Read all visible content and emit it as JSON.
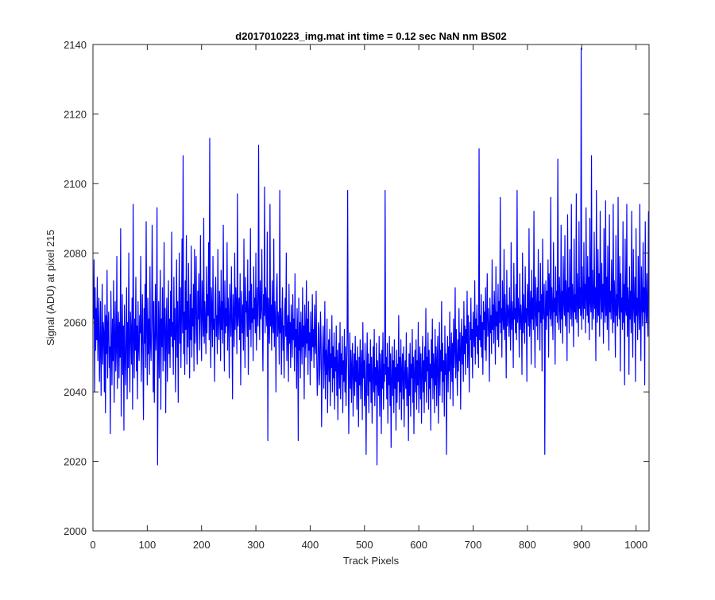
{
  "chart_data": {
    "type": "line",
    "title": "d2017010223_img.mat int time = 0.12 sec  NaN nm BS02",
    "xlabel": "Track Pixels",
    "ylabel": "Signal (ADU) at pixel 215",
    "xlim": [
      0,
      1024
    ],
    "ylim": [
      2000,
      2140
    ],
    "xticks": [
      0,
      100,
      200,
      300,
      400,
      500,
      600,
      700,
      800,
      900,
      1000
    ],
    "yticks": [
      2000,
      2020,
      2040,
      2060,
      2080,
      2100,
      2120,
      2140
    ],
    "xtick_labels": [
      "0",
      "100",
      "200",
      "300",
      "400",
      "500",
      "600",
      "700",
      "800",
      "900",
      "1000"
    ],
    "ytick_labels": [
      "2000",
      "2020",
      "2040",
      "2060",
      "2080",
      "2100",
      "2120",
      "2140"
    ],
    "grid": false,
    "legend": "none",
    "series": [
      {
        "color": "#0000ff",
        "x_start": 1,
        "x_step": 1,
        "values": [
          2061,
          2078,
          2040,
          2070,
          2052,
          2064,
          2055,
          2073,
          2049,
          2058,
          2067,
          2043,
          2052,
          2066,
          2039,
          2054,
          2071,
          2048,
          2060,
          2057,
          2040,
          2065,
          2034,
          2062,
          2051,
          2075,
          2044,
          2059,
          2063,
          2047,
          2053,
          2028,
          2069,
          2056,
          2042,
          2061,
          2049,
          2072,
          2037,
          2055,
          2066,
          2046,
          2052,
          2079,
          2041,
          2057,
          2063,
          2044,
          2060,
          2050,
          2087,
          2033,
          2054,
          2068,
          2045,
          2059,
          2029,
          2065,
          2051,
          2042,
          2056,
          2070,
          2038,
          2060,
          2047,
          2080,
          2053,
          2040,
          2063,
          2058,
          2048,
          2067,
          2035,
          2094,
          2056,
          2044,
          2061,
          2052,
          2073,
          2046,
          2059,
          2038,
          2066,
          2053,
          2049,
          2062,
          2057,
          2079,
          2043,
          2055,
          2068,
          2050,
          2032,
          2064,
          2054,
          2071,
          2047,
          2089,
          2058,
          2042,
          2067,
          2051,
          2061,
          2045,
          2076,
          2054,
          2049,
          2059,
          2088,
          2063,
          2040,
          2066,
          2037,
          2055,
          2071,
          2052,
          2058,
          2093,
          2019,
          2050,
          2066,
          2044,
          2059,
          2075,
          2035,
          2061,
          2053,
          2070,
          2046,
          2057,
          2083,
          2049,
          2064,
          2034,
          2058,
          2067,
          2043,
          2055,
          2072,
          2051,
          2061,
          2047,
          2069,
          2056,
          2086,
          2053,
          2060,
          2045,
          2073,
          2055,
          2064,
          2040,
          2058,
          2078,
          2050,
          2066,
          2037,
          2060,
          2080,
          2054,
          2070,
          2047,
          2062,
          2084,
          2057,
          2108,
          2051,
          2063,
          2045,
          2072,
          2058,
          2085,
          2048,
          2066,
          2053,
          2077,
          2060,
          2044,
          2068,
          2055,
          2082,
          2050,
          2064,
          2059,
          2071,
          2046,
          2081,
          2054,
          2063,
          2079,
          2057,
          2048,
          2069,
          2061,
          2074,
          2052,
          2062,
          2085,
          2058,
          2049,
          2072,
          2063,
          2056,
          2090,
          2054,
          2066,
          2060,
          2051,
          2076,
          2057,
          2068,
          2062,
          2083,
          2055,
          2113,
          2059,
          2047,
          2070,
          2064,
          2053,
          2079,
          2058,
          2061,
          2043,
          2067,
          2073,
          2056,
          2062,
          2051,
          2081,
          2060,
          2055,
          2069,
          2063,
          2049,
          2075,
          2058,
          2066,
          2054,
          2088,
          2061,
          2046,
          2072,
          2057,
          2064,
          2059,
          2083,
          2052,
          2067,
          2061,
          2044,
          2071,
          2065,
          2056,
          2076,
          2060,
          2038,
          2068,
          2062,
          2053,
          2080,
          2058,
          2070,
          2064,
          2051,
          2097,
          2059,
          2063,
          2067,
          2055,
          2074,
          2042,
          2061,
          2069,
          2057,
          2065,
          2052,
          2084,
          2059,
          2047,
          2073,
          2063,
          2066,
          2056,
          2078,
          2045,
          2062,
          2069,
          2058,
          2087,
          2053,
          2071,
          2060,
          2064,
          2049,
          2076,
          2061,
          2067,
          2057,
          2080,
          2052,
          2063,
          2070,
          2059,
          2111,
          2066,
          2055,
          2072,
          2061,
          2064,
          2081,
          2058,
          2046,
          2068,
          2062,
          2099,
          2057,
          2070,
          2064,
          2059,
          2086,
          2026,
          2067,
          2061,
          2054,
          2094,
          2059,
          2065,
          2052,
          2072,
          2060,
          2057,
          2084,
          2053,
          2066,
          2061,
          2040,
          2069,
          2074,
          2056,
          2063,
          2060,
          2048,
          2098,
          2057,
          2064,
          2045,
          2061,
          2070,
          2052,
          2059,
          2044,
          2063,
          2067,
          2056,
          2080,
          2049,
          2058,
          2062,
          2043,
          2071,
          2054,
          2060,
          2047,
          2065,
          2057,
          2050,
          2068,
          2055,
          2061,
          2046,
          2074,
          2053,
          2058,
          2041,
          2064,
          2056,
          2026,
          2067,
          2052,
          2060,
          2044,
          2063,
          2055,
          2048,
          2070,
          2053,
          2059,
          2038,
          2065,
          2056,
          2050,
          2072,
          2054,
          2061,
          2045,
          2066,
          2052,
          2057,
          2042,
          2063,
          2055,
          2049,
          2068,
          2053,
          2058,
          2047,
          2065,
          2054,
          2051,
          2069,
          2051,
          2039,
          2044,
          2060,
          2058,
          2042,
          2048,
          2063,
          2056,
          2030,
          2046,
          2053,
          2059,
          2041,
          2050,
          2066,
          2038,
          2052,
          2045,
          2061,
          2034,
          2049,
          2055,
          2043,
          2058,
          2036,
          2051,
          2047,
          2062,
          2040,
          2053,
          2044,
          2057,
          2035,
          2050,
          2046,
          2059,
          2039,
          2052,
          2032,
          2048,
          2054,
          2041,
          2060,
          2038,
          2051,
          2045,
          2056,
          2034,
          2049,
          2043,
          2058,
          2040,
          2053,
          2036,
          2047,
          2055,
          2098,
          2050,
          2028,
          2044,
          2057,
          2041,
          2052,
          2037,
          2048,
          2054,
          2033,
          2046,
          2051,
          2039,
          2056,
          2043,
          2049,
          2035,
          2053,
          2045,
          2030,
          2050,
          2042,
          2055,
          2038,
          2047,
          2052,
          2032,
          2060,
          2044,
          2049,
          2036,
          2054,
          2041,
          2022,
          2046,
          2057,
          2039,
          2051,
          2034,
          2048,
          2043,
          2055,
          2037,
          2050,
          2031,
          2045,
          2053,
          2040,
          2058,
          2036,
          2047,
          2042,
          2054,
          2019,
          2049,
          2044,
          2039,
          2056,
          2033,
          2051,
          2046,
          2028,
          2052,
          2041,
          2057,
          2035,
          2048,
          2043,
          2098,
          2045,
          2050,
          2038,
          2054,
          2031,
          2047,
          2042,
          2056,
          2036,
          2051,
          2024,
          2044,
          2053,
          2039,
          2049,
          2034,
          2055,
          2041,
          2047,
          2029,
          2052,
          2037,
          2048,
          2043,
          2062,
          2035,
          2050,
          2040,
          2055,
          2032,
          2046,
          2051,
          2038,
          2053,
          2030,
          2045,
          2049,
          2041,
          2057,
          2036,
          2047,
          2043,
          2026,
          2051,
          2039,
          2054,
          2033,
          2048,
          2044,
          2058,
          2037,
          2050,
          2028,
          2046,
          2052,
          2040,
          2055,
          2035,
          2049,
          2042,
          2060,
          2034,
          2047,
          2053,
          2038,
          2051,
          2031,
          2045,
          2056,
          2040,
          2049,
          2034,
          2053,
          2043,
          2064,
          2037,
          2050,
          2046,
          2057,
          2035,
          2052,
          2041,
          2048,
          2029,
          2055,
          2044,
          2061,
          2038,
          2051,
          2047,
          2034,
          2058,
          2042,
          2053,
          2036,
          2049,
          2056,
          2031,
          2045,
          2060,
          2039,
          2052,
          2046,
          2066,
          2037,
          2054,
          2043,
          2049,
          2033,
          2059,
          2045,
          2051,
          2022,
          2048,
          2056,
          2040,
          2053,
          2046,
          2063,
          2038,
          2050,
          2057,
          2043,
          2054,
          2036,
          2061,
          2047,
          2052,
          2070,
          2044,
          2058,
          2050,
          2039,
          2055,
          2046,
          2064,
          2049,
          2057,
          2035,
          2053,
          2061,
          2048,
          2056,
          2043,
          2066,
          2051,
          2059,
          2045,
          2058,
          2054,
          2069,
          2047,
          2062,
          2052,
          2040,
          2060,
          2055,
          2067,
          2050,
          2058,
          2044,
          2063,
          2057,
          2053,
          2072,
          2048,
          2061,
          2056,
          2065,
          2051,
          2059,
          2047,
          2110,
          2055,
          2062,
          2053,
          2068,
          2050,
          2060,
          2045,
          2066,
          2058,
          2063,
          2052,
          2070,
          2049,
          2061,
          2074,
          2056,
          2064,
          2059,
          2043,
          2067,
          2057,
          2062,
          2051,
          2078,
          2058,
          2065,
          2054,
          2069,
          2061,
          2048,
          2076,
          2059,
          2063,
          2055,
          2071,
          2053,
          2066,
          2060,
          2096,
          2057,
          2064,
          2050,
          2072,
          2062,
          2058,
          2081,
          2055,
          2068,
          2061,
          2044,
          2075,
          2059,
          2065,
          2063,
          2056,
          2070,
          2060,
          2052,
          2083,
          2058,
          2066,
          2062,
          2047,
          2077,
          2061,
          2064,
          2057,
          2071,
          2055,
          2098,
          2060,
          2067,
          2063,
          2050,
          2074,
          2058,
          2065,
          2061,
          2045,
          2080,
          2057,
          2068,
          2062,
          2054,
          2076,
          2060,
          2064,
          2043,
          2071,
          2066,
          2059,
          2087,
          2056,
          2063,
          2069,
          2048,
          2075,
          2061,
          2067,
          2058,
          2092,
          2062,
          2047,
          2073,
          2064,
          2059,
          2070,
          2055,
          2081,
          2063,
          2066,
          2052,
          2077,
          2060,
          2068,
          2046,
          2084,
          2061,
          2065,
          2071,
          2022,
          2063,
          2072,
          2058,
          2069,
          2062,
          2078,
          2050,
          2074,
          2066,
          2061,
          2096,
          2059,
          2070,
          2064,
          2055,
          2083,
          2063,
          2067,
          2048,
          2076,
          2062,
          2069,
          2060,
          2107,
          2066,
          2058,
          2073,
          2064,
          2057,
          2088,
          2061,
          2069,
          2054,
          2079,
          2066,
          2062,
          2085,
          2059,
          2072,
          2067,
          2049,
          2091,
          2063,
          2070,
          2057,
          2081,
          2065,
          2061,
          2094,
          2059,
          2071,
          2066,
          2053,
          2084,
          2063,
          2068,
          2061,
          2097,
          2060,
          2074,
          2067,
          2056,
          2089,
          2064,
          2070,
          2062,
          2139,
          2058,
          2076,
          2066,
          2061,
          2083,
          2064,
          2071,
          2057,
          2093,
          2067,
          2062,
          2079,
          2060,
          2073,
          2055,
          2090,
          2066,
          2063,
          2108,
          2058,
          2075,
          2067,
          2061,
          2086,
          2064,
          2070,
          2049,
          2098,
          2065,
          2060,
          2081,
          2062,
          2074,
          2056,
          2092,
          2068,
          2061,
          2077,
          2063,
          2071,
          2054,
          2087,
          2066,
          2060,
          2095,
          2062,
          2073,
          2058,
          2082,
          2065,
          2052,
          2091,
          2063,
          2069,
          2061,
          2078,
          2066,
          2057,
          2094,
          2060,
          2072,
          2064,
          2050,
          2085,
          2062,
          2068,
          2059,
          2096,
          2065,
          2061,
          2079,
          2046,
          2074,
          2063,
          2067,
          2058,
          2089,
          2060,
          2071,
          2042,
          2084,
          2064,
          2062,
          2094,
          2056,
          2070,
          2066,
          2045,
          2076,
          2061,
          2069,
          2057,
          2092,
          2063,
          2050,
          2081,
          2065,
          2060,
          2073,
          2043,
          2087,
          2062,
          2067,
          2055,
          2079,
          2064,
          2058,
          2094,
          2061,
          2049,
          2076,
          2066,
          2059,
          2083,
          2063,
          2070,
          2042,
          2089,
          2065,
          2060,
          2074,
          2062,
          2056,
          2092
        ]
      }
    ]
  }
}
